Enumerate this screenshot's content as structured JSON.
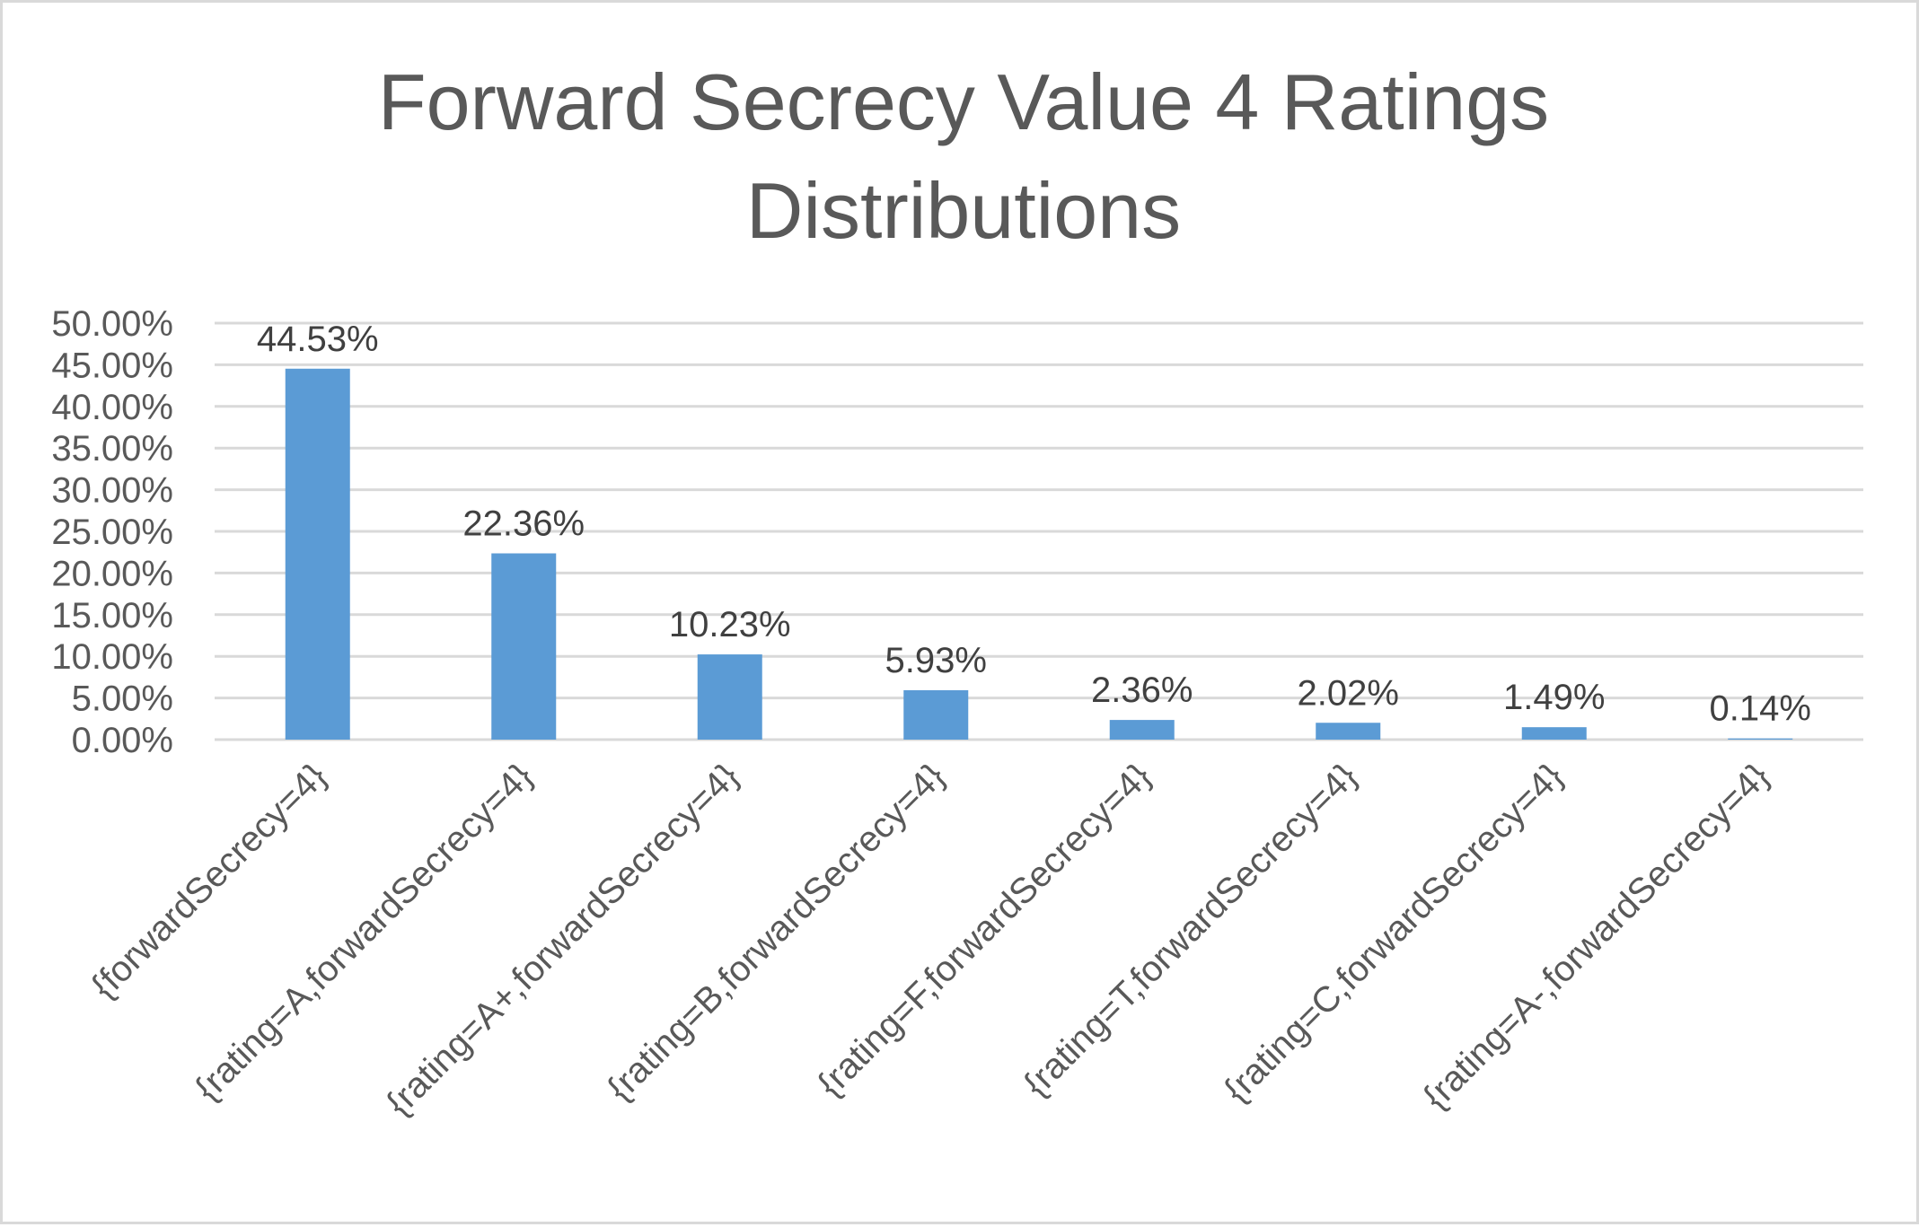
{
  "chart_data": {
    "type": "bar",
    "title_lines": [
      "Forward Secrecy Value 4 Ratings",
      "Distributions"
    ],
    "categories": [
      "{forwardSecrecy=4}",
      "{rating=A,forwardSecrecy=4}",
      "{rating=A+,forwardSecrecy=4}",
      "{rating=B,forwardSecrecy=4}",
      "{rating=F,forwardSecrecy=4}",
      "{rating=T,forwardSecrecy=4}",
      "{rating=C,forwardSecrecy=4}",
      "{rating=A-,forwardSecrecy=4}"
    ],
    "values": [
      44.53,
      22.36,
      10.23,
      5.93,
      2.36,
      2.02,
      1.49,
      0.14
    ],
    "data_labels": [
      "44.53%",
      "22.36%",
      "10.23%",
      "5.93%",
      "2.36%",
      "2.02%",
      "1.49%",
      "0.14%"
    ],
    "ylim": [
      0,
      50
    ],
    "y_ticks": [
      0,
      5,
      10,
      15,
      20,
      25,
      30,
      35,
      40,
      45,
      50
    ],
    "y_tick_labels": [
      "0.00%",
      "5.00%",
      "10.00%",
      "15.00%",
      "20.00%",
      "25.00%",
      "30.00%",
      "35.00%",
      "40.00%",
      "45.00%",
      "50.00%"
    ],
    "grid": true,
    "legend": "none",
    "bar_color": "#5b9bd5"
  }
}
